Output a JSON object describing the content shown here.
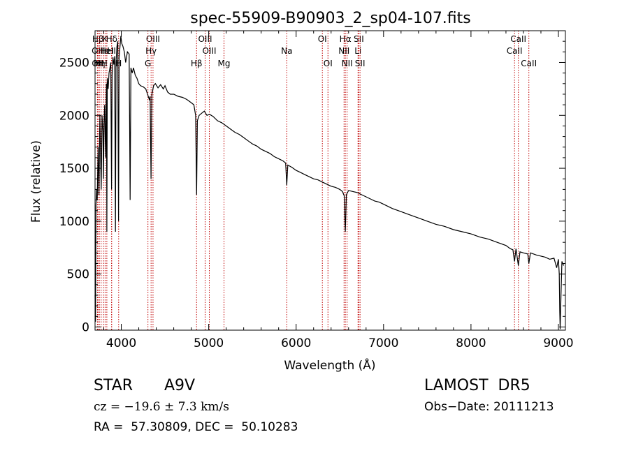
{
  "chart_data": {
    "type": "line",
    "title": "spec-55909-B90903_2_sp04-107.fits",
    "xlabel": "Wavelength (Å)",
    "ylabel": "Flux (relative)",
    "xlim": [
      3700,
      9080
    ],
    "ylim": [
      -30,
      2800
    ],
    "xticks": [
      4000,
      5000,
      6000,
      7000,
      8000,
      9000
    ],
    "yticks": [
      0,
      500,
      1000,
      1500,
      2000,
      2500
    ],
    "grid": false,
    "series": [
      {
        "x": [
          3700,
          3705,
          3710,
          3718,
          3725,
          3735,
          3745,
          3755,
          3770,
          3780,
          3790,
          3797,
          3803,
          3810,
          3820,
          3830,
          3835,
          3840,
          3850,
          3860,
          3870,
          3880,
          3889,
          3895,
          3905,
          3915,
          3925,
          3933.7,
          3940,
          3950,
          3960,
          3968.5,
          3975,
          3985,
          3995,
          4005,
          4020,
          4035,
          4050,
          4070,
          4090,
          4101.7,
          4110,
          4125,
          4140,
          4160,
          4180,
          4200,
          4220,
          4250,
          4280,
          4300,
          4320,
          4330,
          4340.5,
          4350,
          4370,
          4390,
          4420,
          4450,
          4480,
          4500,
          4530,
          4560,
          4600,
          4650,
          4700,
          4750,
          4800,
          4830,
          4850,
          4861.3,
          4870,
          4890,
          4920,
          4950,
          4980,
          5010,
          5050,
          5100,
          5150,
          5200,
          5250,
          5300,
          5350,
          5400,
          5450,
          5500,
          5550,
          5600,
          5650,
          5700,
          5750,
          5800,
          5850,
          5880,
          5893,
          5905,
          5950,
          6000,
          6050,
          6100,
          6150,
          6200,
          6250,
          6300,
          6350,
          6400,
          6450,
          6500,
          6530,
          6550,
          6562.8,
          6575,
          6600,
          6650,
          6700,
          6750,
          6800,
          6850,
          6900,
          6950,
          7000,
          7100,
          7200,
          7300,
          7400,
          7500,
          7600,
          7700,
          7800,
          7900,
          8000,
          8100,
          8200,
          8300,
          8400,
          8450,
          8480,
          8498,
          8515,
          8542,
          8560,
          8600,
          8650,
          8662,
          8680,
          8750,
          8800,
          8850,
          8900,
          8950,
          8980,
          9000,
          9010,
          9015,
          9020,
          9030,
          9040,
          9050,
          9060
        ],
        "y": [
          300,
          50,
          1150,
          1300,
          1200,
          1700,
          1250,
          2000,
          1300,
          2000,
          1850,
          1400,
          1950,
          2100,
          1600,
          2300,
          900,
          2350,
          2250,
          2400,
          2450,
          2500,
          1300,
          2380,
          2550,
          2480,
          2560,
          900,
          2500,
          2650,
          2700,
          1000,
          2550,
          2650,
          2750,
          2680,
          2650,
          2600,
          2500,
          2600,
          2580,
          1200,
          2450,
          2400,
          2450,
          2380,
          2350,
          2300,
          2280,
          2270,
          2250,
          2200,
          2150,
          2180,
          1400,
          2200,
          2280,
          2300,
          2260,
          2290,
          2250,
          2280,
          2220,
          2200,
          2200,
          2180,
          2170,
          2150,
          2120,
          2100,
          2000,
          1250,
          1950,
          2000,
          2020,
          2040,
          2000,
          2010,
          1990,
          1950,
          1930,
          1900,
          1870,
          1840,
          1820,
          1790,
          1760,
          1730,
          1710,
          1680,
          1660,
          1640,
          1610,
          1590,
          1570,
          1550,
          1340,
          1530,
          1510,
          1480,
          1460,
          1440,
          1420,
          1400,
          1390,
          1370,
          1350,
          1330,
          1320,
          1300,
          1280,
          1240,
          900,
          1250,
          1290,
          1280,
          1270,
          1250,
          1230,
          1210,
          1190,
          1180,
          1160,
          1120,
          1090,
          1060,
          1030,
          1000,
          970,
          950,
          920,
          900,
          880,
          850,
          830,
          800,
          770,
          740,
          730,
          620,
          740,
          580,
          710,
          700,
          690,
          600,
          700,
          680,
          670,
          660,
          640,
          650,
          560,
          640,
          500,
          150,
          -20,
          300,
          620,
          600,
          580
        ]
      }
    ],
    "line_markers": [
      {
        "label": "Hβ",
        "x": 3734,
        "row": 0
      },
      {
        "label": "K",
        "x": 3815,
        "row": 0
      },
      {
        "label": "Hδ",
        "x": 3890,
        "row": 0
      },
      {
        "label": "OII",
        "x": 3727,
        "row": 1
      },
      {
        "label": "Hε",
        "x": 3797,
        "row": 1
      },
      {
        "label": "HeI",
        "x": 3835,
        "row": 1
      },
      {
        "label": "HI",
        "x": 3889,
        "row": 1
      },
      {
        "label": "OII",
        "x": 3729,
        "row": 2
      },
      {
        "label": "Hη",
        "x": 3750,
        "row": 2
      },
      {
        "label": "HH",
        "x": 3770,
        "row": 2
      },
      {
        "label": "H",
        "x": 3970,
        "row": 2
      },
      {
        "label": "OIII",
        "x": 4363,
        "row": 0
      },
      {
        "label": "Hγ",
        "x": 4341,
        "row": 1
      },
      {
        "label": "G",
        "x": 4305,
        "row": 2
      },
      {
        "label": "OIII",
        "x": 4959,
        "row": 0
      },
      {
        "label": "OIII",
        "x": 5007,
        "row": 1
      },
      {
        "label": "Hβ",
        "x": 4861,
        "row": 2
      },
      {
        "label": "Mg",
        "x": 5175,
        "row": 2
      },
      {
        "label": "Na",
        "x": 5893,
        "row": 1
      },
      {
        "label": "OI",
        "x": 6300,
        "row": 0
      },
      {
        "label": "OI",
        "x": 6364,
        "row": 2
      },
      {
        "label": "Hα",
        "x": 6563,
        "row": 0
      },
      {
        "label": "SII",
        "x": 6717,
        "row": 0
      },
      {
        "label": "NII",
        "x": 6548,
        "row": 1
      },
      {
        "label": "Li",
        "x": 6708,
        "row": 1
      },
      {
        "label": "NII",
        "x": 6583,
        "row": 2
      },
      {
        "label": "SII",
        "x": 6731,
        "row": 2
      },
      {
        "label": "CaII",
        "x": 8542,
        "row": 0
      },
      {
        "label": "CaII",
        "x": 8498,
        "row": 1
      },
      {
        "label": "CaII",
        "x": 8662,
        "row": 2
      }
    ]
  },
  "footer": {
    "object_class": "STAR",
    "subclass": "A9V",
    "survey": "LAMOST  DR5",
    "cz": "cz = −19.6 ± 7.3 km/s",
    "obs_date": "Obs−Date: 20111213",
    "coords": "RA =  57.30809, DEC =  50.10283"
  },
  "colors": {
    "marker_line": "#c00000",
    "spectrum": "#000000"
  }
}
